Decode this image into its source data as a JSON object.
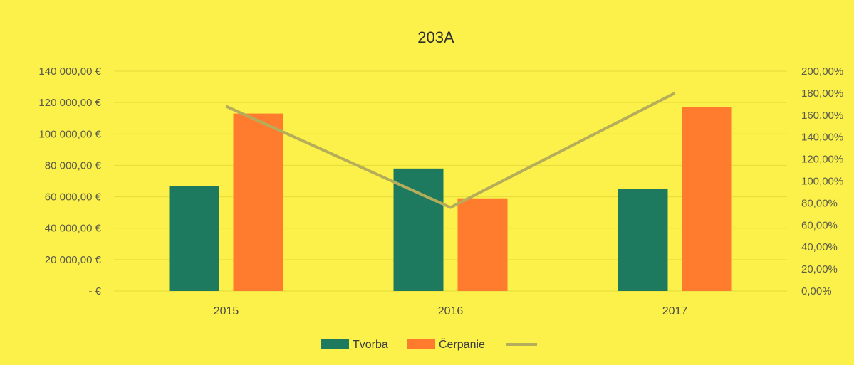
{
  "chart_data": {
    "type": "bar",
    "title": "203A",
    "categories": [
      "2015",
      "2016",
      "2017"
    ],
    "series": [
      {
        "name": "Tvorba",
        "kind": "bar",
        "axis": "left",
        "color": "#1e7a5e",
        "values": [
          67000,
          78000,
          65000
        ]
      },
      {
        "name": "Čerpanie",
        "kind": "bar",
        "axis": "left",
        "color": "#ff7b2e",
        "values": [
          113000,
          59000,
          117000
        ]
      },
      {
        "name": "",
        "kind": "line",
        "axis": "right",
        "color": "#b5ad5a",
        "values": [
          1.68,
          0.76,
          1.8
        ]
      }
    ],
    "ylim": [
      0,
      140000
    ],
    "y_ticks": [
      "-   €",
      "20 000,00 €",
      "40 000,00 €",
      "60 000,00 €",
      "80 000,00 €",
      "100 000,00 €",
      "120 000,00 €",
      "140 000,00 €"
    ],
    "y2lim": [
      0,
      2.0
    ],
    "y2_ticks": [
      "0,00%",
      "20,00%",
      "40,00%",
      "60,00%",
      "80,00%",
      "100,00%",
      "120,00%",
      "140,00%",
      "160,00%",
      "180,00%",
      "200,00%"
    ],
    "legend_position": "bottom",
    "grid": true
  }
}
